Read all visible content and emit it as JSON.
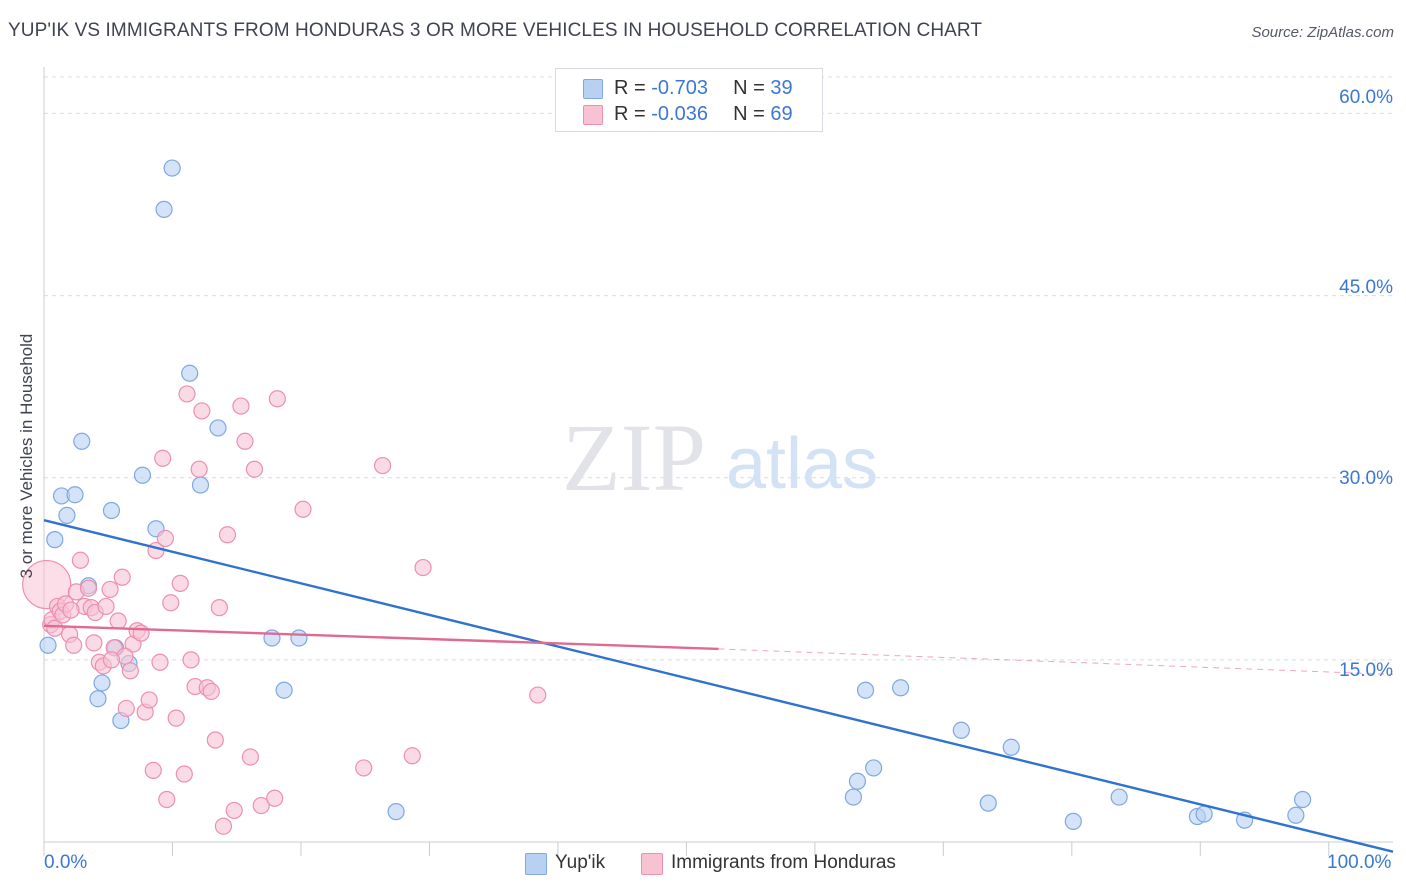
{
  "title": "YUP'IK VS IMMIGRANTS FROM HONDURAS 3 OR MORE VEHICLES IN HOUSEHOLD CORRELATION CHART",
  "source": "Source: ZipAtlas.com",
  "watermark": {
    "zip": "ZIP",
    "atlas": "atlas"
  },
  "legend": {
    "rows": [
      {
        "r_label": "R = ",
        "r_value": "-0.703",
        "n_label": "N = ",
        "n_value": "39"
      },
      {
        "r_label": "R = ",
        "r_value": "-0.036",
        "n_label": "N = ",
        "n_value": "69"
      }
    ]
  },
  "colors": {
    "yupik_fill": "#b8d1f3",
    "yupik_stroke": "#7fa8e0",
    "yupik_line": "#2f72d0",
    "honduras_fill": "#f7c3d3",
    "honduras_stroke": "#ec8fb0",
    "honduras_line": "#e06a94",
    "tick_text": "#3a78d4",
    "grid": "#d9dce3"
  },
  "chart_data": {
    "type": "scatter",
    "title": "YUP'IK VS IMMIGRANTS FROM HONDURAS 3 OR MORE VEHICLES IN HOUSEHOLD CORRELATION CHART",
    "xlabel": "",
    "ylabel": "3 or more Vehicles in Household",
    "xlim": [
      0,
      100
    ],
    "ylim": [
      0,
      63
    ],
    "x_tick_labels": [
      "0.0%",
      "100.0%"
    ],
    "y_ticks": [
      15,
      30,
      45,
      60
    ],
    "y_tick_labels": [
      "15.0%",
      "30.0%",
      "45.0%",
      "60.0%"
    ],
    "grid": true,
    "legend_placement": "bottom",
    "series": [
      {
        "name": "Yup'ik",
        "points": [
          [
            0.3,
            16.2
          ],
          [
            0.8,
            24.9
          ],
          [
            1.3,
            28.5
          ],
          [
            1.7,
            26.9
          ],
          [
            2.3,
            28.6
          ],
          [
            2.8,
            33.0
          ],
          [
            3.3,
            21.1
          ],
          [
            4.0,
            11.8
          ],
          [
            4.3,
            13.1
          ],
          [
            5.0,
            27.3
          ],
          [
            5.3,
            16.0
          ],
          [
            5.7,
            10.0
          ],
          [
            6.3,
            14.7
          ],
          [
            7.3,
            30.2
          ],
          [
            8.3,
            25.8
          ],
          [
            8.9,
            52.1
          ],
          [
            9.5,
            55.5
          ],
          [
            10.8,
            38.6
          ],
          [
            11.6,
            29.4
          ],
          [
            12.9,
            34.1
          ],
          [
            16.9,
            16.8
          ],
          [
            17.8,
            12.5
          ],
          [
            18.9,
            16.8
          ],
          [
            26.1,
            2.5
          ],
          [
            60.0,
            3.7
          ],
          [
            60.3,
            5.0
          ],
          [
            60.9,
            12.5
          ],
          [
            61.5,
            6.1
          ],
          [
            63.5,
            12.7
          ],
          [
            68.0,
            9.2
          ],
          [
            70.0,
            3.2
          ],
          [
            71.7,
            7.8
          ],
          [
            76.3,
            1.7
          ],
          [
            79.7,
            3.7
          ],
          [
            85.5,
            2.1
          ],
          [
            86.0,
            2.3
          ],
          [
            89.0,
            1.8
          ],
          [
            92.8,
            2.2
          ],
          [
            93.3,
            3.5
          ]
        ],
        "trend": {
          "x": [
            0,
            100
          ],
          "y": [
            26.5,
            -0.8
          ]
        }
      },
      {
        "name": "Immigrants from Honduras",
        "points": [
          [
            0.2,
            21.2
          ],
          [
            0.5,
            17.9
          ],
          [
            0.6,
            18.3
          ],
          [
            0.8,
            17.6
          ],
          [
            1.0,
            19.4
          ],
          [
            1.2,
            19.0
          ],
          [
            1.4,
            18.7
          ],
          [
            1.6,
            19.6
          ],
          [
            1.9,
            17.1
          ],
          [
            2.2,
            16.2
          ],
          [
            2.4,
            20.6
          ],
          [
            2.7,
            23.2
          ],
          [
            3.0,
            19.4
          ],
          [
            3.3,
            20.9
          ],
          [
            3.5,
            19.3
          ],
          [
            3.8,
            18.9
          ],
          [
            4.1,
            14.8
          ],
          [
            4.4,
            14.5
          ],
          [
            4.6,
            19.4
          ],
          [
            4.9,
            20.8
          ],
          [
            5.2,
            16.0
          ],
          [
            5.5,
            18.2
          ],
          [
            5.8,
            21.8
          ],
          [
            6.1,
            11.0
          ],
          [
            6.4,
            14.1
          ],
          [
            6.6,
            16.3
          ],
          [
            6.9,
            17.4
          ],
          [
            7.2,
            17.2
          ],
          [
            7.5,
            10.7
          ],
          [
            7.8,
            11.7
          ],
          [
            8.1,
            5.9
          ],
          [
            8.3,
            24.0
          ],
          [
            8.6,
            14.8
          ],
          [
            8.8,
            31.6
          ],
          [
            9.1,
            3.5
          ],
          [
            9.4,
            19.7
          ],
          [
            9.8,
            10.2
          ],
          [
            10.1,
            21.3
          ],
          [
            10.4,
            5.6
          ],
          [
            10.6,
            36.9
          ],
          [
            10.9,
            15.0
          ],
          [
            11.2,
            12.8
          ],
          [
            11.5,
            30.7
          ],
          [
            11.7,
            35.5
          ],
          [
            12.1,
            12.7
          ],
          [
            12.4,
            12.4
          ],
          [
            12.7,
            8.4
          ],
          [
            13.0,
            19.3
          ],
          [
            13.3,
            1.3
          ],
          [
            13.6,
            25.3
          ],
          [
            14.1,
            2.6
          ],
          [
            14.6,
            35.9
          ],
          [
            14.9,
            33.0
          ],
          [
            15.3,
            7.0
          ],
          [
            15.6,
            30.7
          ],
          [
            16.1,
            3.0
          ],
          [
            17.1,
            3.6
          ],
          [
            17.3,
            36.5
          ],
          [
            19.2,
            27.4
          ],
          [
            23.7,
            6.1
          ],
          [
            25.1,
            31.0
          ],
          [
            27.3,
            7.1
          ],
          [
            28.1,
            22.6
          ],
          [
            36.6,
            12.1
          ],
          [
            9.0,
            25.0
          ],
          [
            6.0,
            15.3
          ],
          [
            3.7,
            16.4
          ],
          [
            5.0,
            15.0
          ],
          [
            2.0,
            19.1
          ]
        ],
        "trend": {
          "x": [
            0,
            50
          ],
          "y": [
            17.8,
            15.9
          ]
        },
        "trend_extrapolated": {
          "x": [
            50,
            100
          ],
          "y": [
            15.9,
            13.8
          ]
        }
      }
    ]
  }
}
